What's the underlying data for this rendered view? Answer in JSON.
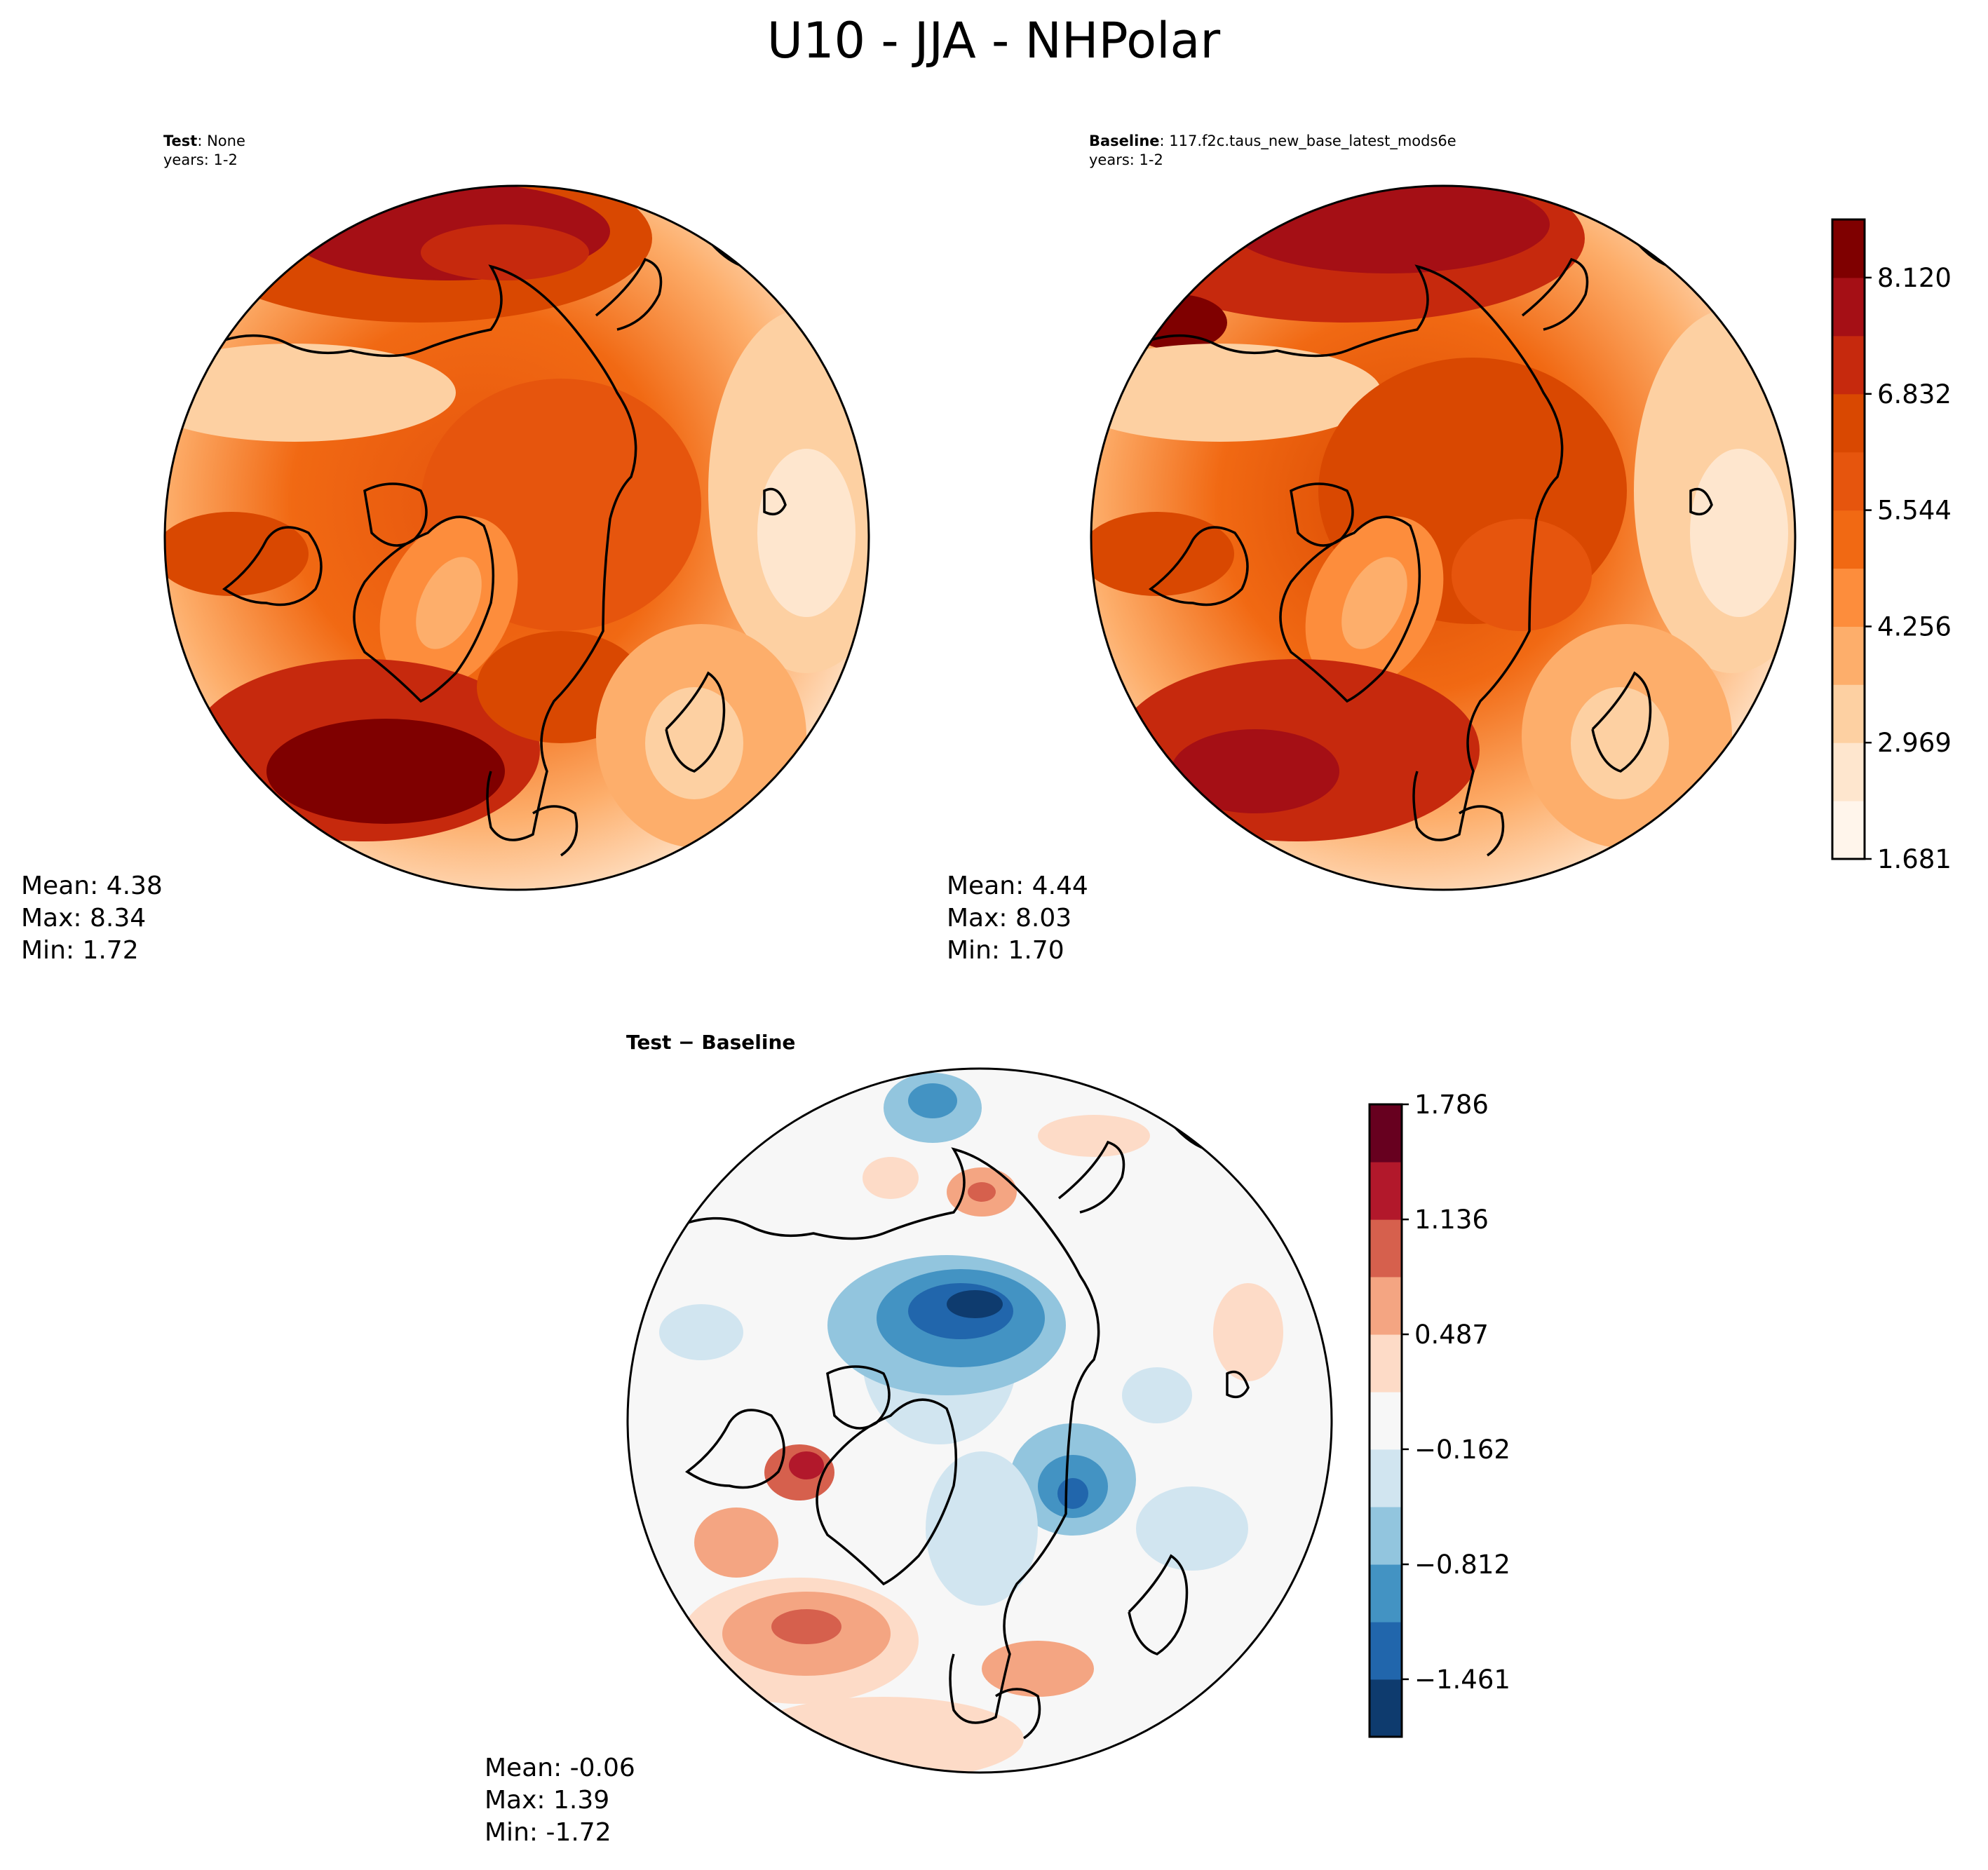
{
  "figure": {
    "title": "U10 - JJA - NHPolar"
  },
  "chart_data": [
    {
      "type": "heatmap",
      "projection": "north-polar-stereographic",
      "panel": "test",
      "label_bold": "Test",
      "label_rest": ": None",
      "years": "years: 1-2",
      "stats": {
        "mean": "Mean:  4.38",
        "max": "Max:  8.34",
        "min": "Min:  1.72"
      },
      "colormap": "Reds",
      "colorbar": null
    },
    {
      "type": "heatmap",
      "projection": "north-polar-stereographic",
      "panel": "baseline",
      "label_bold": "Baseline",
      "label_rest": ": 117.f2c.taus_new_base_latest_mods6e",
      "years": "years: 1-2",
      "stats": {
        "mean": "Mean:  4.44",
        "max": "Max:  8.03",
        "min": "Min:  1.70"
      },
      "colormap": "Reds",
      "colorbar": {
        "range": [
          1.681,
          8.764
        ],
        "ticks": [
          "8.120",
          "6.832",
          "5.544",
          "4.256",
          "2.969",
          "1.681"
        ],
        "tick_values": [
          8.12,
          6.832,
          5.544,
          4.256,
          2.969,
          1.681
        ],
        "levels": [
          1.681,
          2.325,
          2.969,
          3.613,
          4.256,
          4.9,
          5.544,
          6.188,
          6.832,
          7.476,
          8.12,
          8.764
        ],
        "colors": [
          "#fff5eb",
          "#fee6ce",
          "#fdd0a2",
          "#fdae6b",
          "#fd8d3c",
          "#f16913",
          "#e6550d",
          "#d94801",
          "#c6290d",
          "#a50f15",
          "#7f0000"
        ]
      }
    },
    {
      "type": "heatmap",
      "projection": "north-polar-stereographic",
      "panel": "difference",
      "label_bold": "Test − Baseline",
      "stats": {
        "mean": "Mean: -0.06",
        "max": "Max:  1.39",
        "min": "Min: -1.72"
      },
      "colormap": "RdBu_r",
      "colorbar": {
        "range": [
          -1.786,
          1.786
        ],
        "ticks": [
          "1.786",
          "1.136",
          "0.487",
          "−0.162",
          "−0.812",
          "−1.461"
        ],
        "tick_values": [
          1.786,
          1.136,
          0.487,
          -0.162,
          -0.812,
          -1.461
        ],
        "levels": [
          -1.786,
          -1.461,
          -1.137,
          -0.812,
          -0.487,
          -0.162,
          0.162,
          0.487,
          0.812,
          1.136,
          1.461,
          1.786
        ],
        "colors": [
          "#0e3b6e",
          "#2166ac",
          "#4393c3",
          "#92c5de",
          "#d1e5f0",
          "#f7f7f7",
          "#fddbc7",
          "#f4a582",
          "#d6604d",
          "#b2182b",
          "#67001f"
        ]
      }
    }
  ]
}
